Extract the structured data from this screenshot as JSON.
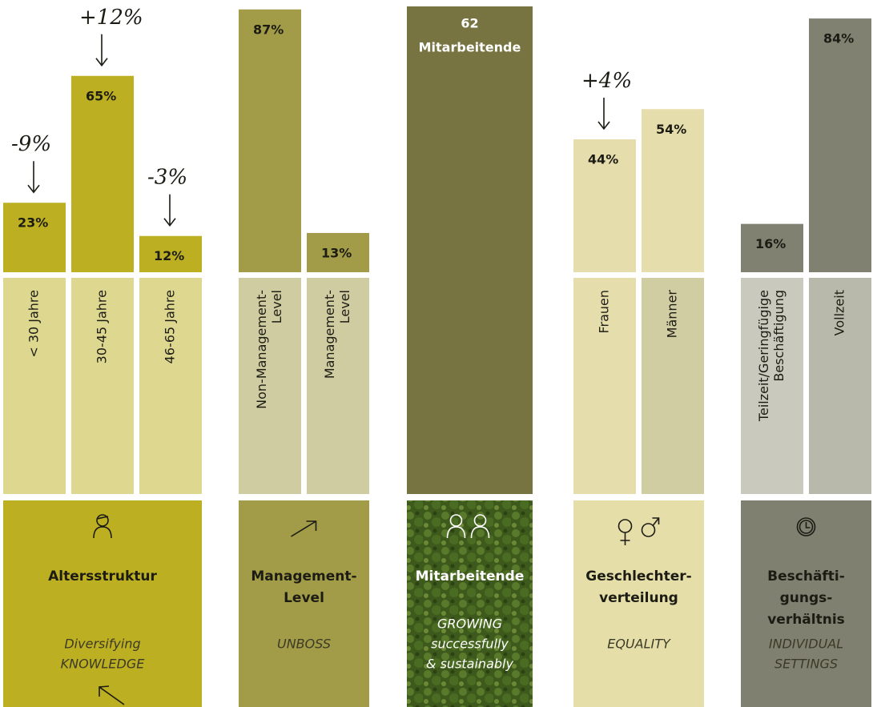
{
  "chart_data": [
    {
      "type": "bar",
      "categories": [
        [
          "< 30 Jahre"
        ],
        [
          "30-45 Jahre"
        ],
        [
          "46-65 Jahre"
        ]
      ],
      "values": [
        23,
        65,
        12
      ],
      "value_labels": [
        "23%",
        "65%",
        "12%"
      ],
      "changes": [
        "-9%",
        "+12%",
        "-3%"
      ],
      "ylim": [
        0,
        88
      ],
      "color": "#bdaf22",
      "label_colors": [
        "#ded790",
        "#ded790",
        "#ded790"
      ],
      "tile_color": "#bdaf22",
      "title": [
        "Altersstruktur"
      ],
      "subtitle": [
        "Diversifying",
        "KNOWLEDGE"
      ]
    },
    {
      "type": "bar",
      "categories": [
        [
          "Non-Management-",
          "Level"
        ],
        [
          "Management-",
          "Level"
        ]
      ],
      "values": [
        87,
        13
      ],
      "value_labels": [
        "87%",
        "13%"
      ],
      "ylim": [
        0,
        88
      ],
      "color": "#a29b47",
      "label_colors": [
        "#d0cca1",
        "#d0cca1"
      ],
      "tile_color": "#a29b47",
      "title": [
        "Management-",
        "Level"
      ],
      "subtitle": [
        "UNBOSS"
      ]
    },
    {
      "type": "bar",
      "categories": [
        [
          "Frauen"
        ],
        [
          "Männer"
        ]
      ],
      "values": [
        44,
        54
      ],
      "value_labels": [
        "44%",
        "54%"
      ],
      "changes": [
        "+4%"
      ],
      "ylim": [
        0,
        88
      ],
      "color": "#e5ddab",
      "label_colors": [
        "#e5ddab",
        "#d1cda3"
      ],
      "tile_color": "#e6dea9",
      "title": [
        "Geschlechter-",
        "verteilung"
      ],
      "subtitle": [
        "EQUALITY"
      ]
    },
    {
      "type": "bar",
      "categories": [
        [
          "Teilzeit/Geringfügige",
          "Beschäftigung"
        ],
        [
          "Vollzeit"
        ]
      ],
      "values": [
        16,
        84
      ],
      "value_labels": [
        "16%",
        "84%"
      ],
      "ylim": [
        0,
        88
      ],
      "color": "#808171",
      "label_colors": [
        "#c9c9bd",
        "#b9b9ab"
      ],
      "tile_color": "#7f8070",
      "title": [
        "Beschäfti-",
        "gungs-",
        "verhältnis"
      ],
      "subtitle": [
        "INDIVIDUAL",
        "SETTINGS"
      ]
    }
  ],
  "employees": {
    "count": 62,
    "label": "Mitarbeitende",
    "title": [
      "Mitarbeitende"
    ],
    "subtitle": [
      "GROWING",
      "successfully",
      "& sustainably"
    ]
  }
}
